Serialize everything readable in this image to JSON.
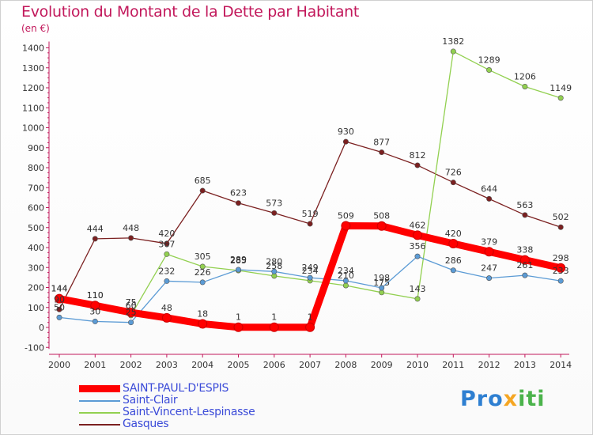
{
  "title": "Evolution du Montant de la Dette par Habitant",
  "unit": "(en €)",
  "logo": {
    "part1": "Pro",
    "part2": "x",
    "part3": "iti"
  },
  "chart_data": {
    "type": "line",
    "x": [
      "2000",
      "2001",
      "2002",
      "2003",
      "2004",
      "2005",
      "2006",
      "2007",
      "2008",
      "2009",
      "2010",
      "2011",
      "2012",
      "2013",
      "2014"
    ],
    "ylim": [
      -100,
      1400
    ],
    "yticks": [
      -100,
      0,
      100,
      200,
      300,
      400,
      500,
      600,
      700,
      800,
      900,
      1000,
      1100,
      1200,
      1300,
      1400
    ],
    "grid": false,
    "legend_position": "bottom-left",
    "series": [
      {
        "name": "SAINT-PAUL-D'ESPIS",
        "color": "#ff0000",
        "values": [
          144,
          110,
          75,
          48,
          18,
          1,
          1,
          1,
          509,
          508,
          462,
          420,
          379,
          338,
          298
        ]
      },
      {
        "name": "Saint-Clair",
        "color": "#5b9bd5",
        "values": [
          50,
          30,
          25,
          232,
          226,
          289,
          280,
          249,
          234,
          198,
          356,
          286,
          247,
          261,
          233
        ]
      },
      {
        "name": "Saint-Vincent-Lespinasse",
        "color": "#92d050",
        "values": [
          144,
          110,
          60,
          367,
          305,
          285,
          258,
          234,
          210,
          175,
          143,
          1382,
          1289,
          1206,
          1149
        ]
      },
      {
        "name": "Gasques",
        "color": "#7b2020",
        "values": [
          90,
          444,
          448,
          420,
          685,
          623,
          573,
          519,
          930,
          877,
          812,
          726,
          644,
          563,
          502
        ]
      }
    ]
  }
}
